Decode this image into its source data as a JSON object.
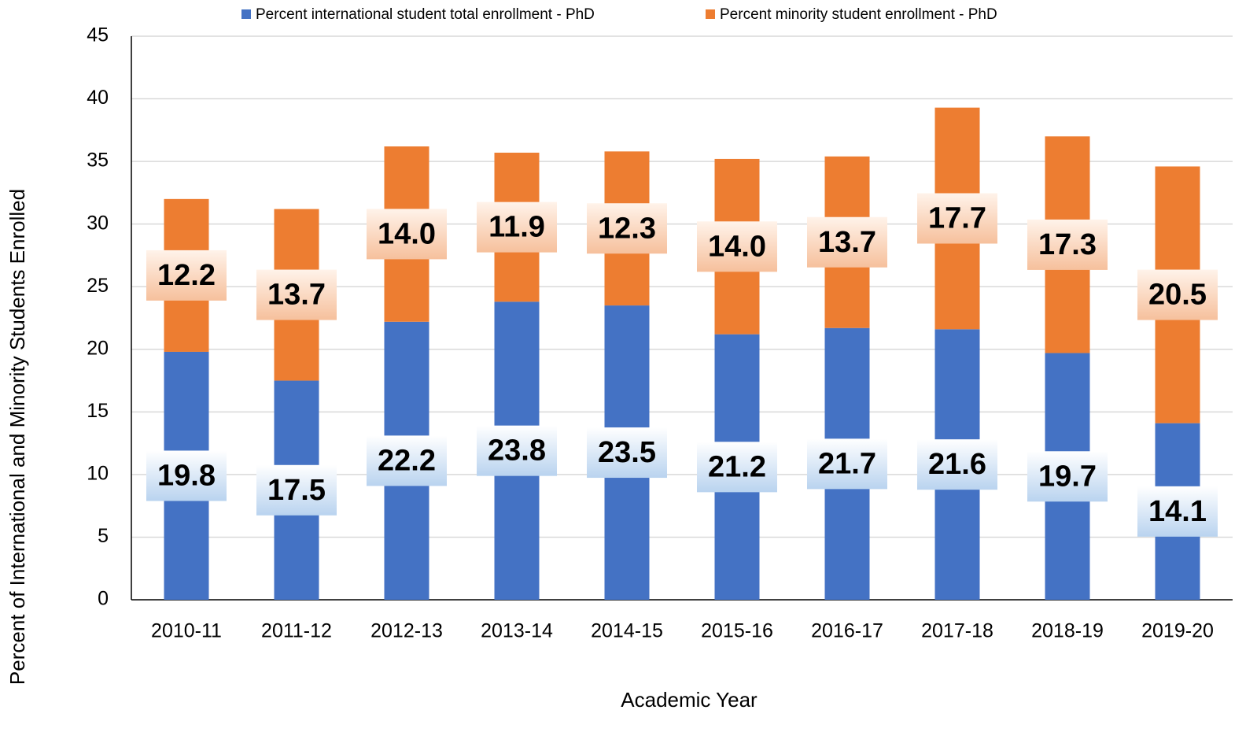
{
  "chart_data": {
    "type": "stacked_bar",
    "x_label": "Academic Year",
    "y_label": "Percent of International and Minority Students Enrolled",
    "categories": [
      "2010-11",
      "2011-12",
      "2012-13",
      "2013-14",
      "2014-15",
      "2015-16",
      "2016-17",
      "2017-18",
      "2018-19",
      "2019-20"
    ],
    "series": [
      {
        "name": "Percent international student total enrollment - PhD",
        "color": "#4472c4",
        "values": [
          19.8,
          17.5,
          22.2,
          23.8,
          23.5,
          21.2,
          21.7,
          21.6,
          19.7,
          14.1
        ],
        "value_labels": [
          "19.8",
          "17.5",
          "22.2",
          "23.8",
          "23.5",
          "21.2",
          "21.7",
          "21.6",
          "19.7",
          "14.1"
        ]
      },
      {
        "name": "Percent minority student enrollment - PhD",
        "color": "#ed7d31",
        "values": [
          12.2,
          13.7,
          14,
          11.9,
          12.3,
          14,
          13.7,
          17.7,
          17.3,
          20.5
        ],
        "value_labels": [
          "12.2",
          "13.7",
          "14.0",
          "11.9",
          "12.3",
          "14.0",
          "13.7",
          "17.7",
          "17.3",
          "20.5"
        ]
      }
    ],
    "ylim": [
      0,
      45
    ],
    "yticks": [
      0,
      5,
      10,
      15,
      20,
      25,
      30,
      35,
      40,
      45
    ],
    "grid": true,
    "legend": "top"
  }
}
